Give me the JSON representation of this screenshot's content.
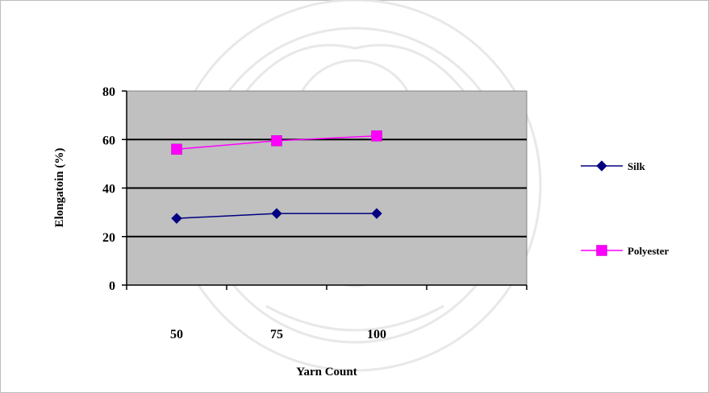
{
  "chart_data": {
    "type": "line",
    "title": "",
    "xlabel": "Yarn Count",
    "ylabel": "Elongatoin (%)",
    "categories": [
      "50",
      "75",
      "100"
    ],
    "ylim": [
      0,
      80
    ],
    "yticks": [
      "0",
      "20",
      "40",
      "60",
      "80"
    ],
    "grid": true,
    "legend_position": "right",
    "plot_background": "#c0c0c0",
    "series": [
      {
        "name": "Silk",
        "values": [
          27.5,
          29.5,
          29.5
        ],
        "color": "#000080",
        "marker": "diamond"
      },
      {
        "name": "Polyester",
        "values": [
          56,
          59.5,
          61.5
        ],
        "color": "#ff00ff",
        "marker": "square"
      }
    ]
  }
}
